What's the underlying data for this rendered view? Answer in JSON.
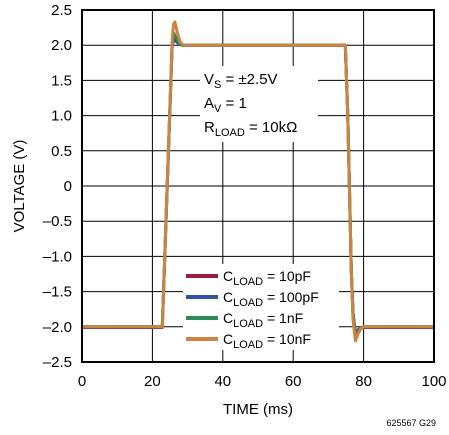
{
  "chart_data": {
    "type": "line",
    "xlabel": "TIME (ms)",
    "ylabel": "VOLTAGE (V)",
    "xlim": [
      0,
      100
    ],
    "ylim": [
      -2.5,
      2.5
    ],
    "x_ticks": [
      "0",
      "20",
      "40",
      "60",
      "80",
      "100"
    ],
    "y_ticks": [
      "2.5",
      "2.0",
      "1.5",
      "1.0",
      "0.5",
      "0",
      "–0.5",
      "–1.0",
      "–1.5",
      "–2.0",
      "–2.5"
    ],
    "grid": true,
    "legend_position": "bottom-center",
    "annotations": {
      "vs": {
        "main": "V",
        "sub": "S",
        "rest": " = ±2.5V"
      },
      "av": {
        "main": "A",
        "sub": "V",
        "rest": " = 1"
      },
      "rload": {
        "main": "R",
        "sub": "LOAD",
        "rest": " = 10kΩ"
      }
    },
    "figure_number": "625567 G29",
    "series": [
      {
        "label_main": "C",
        "label_sub": "LOAD",
        "label_rest": " = 10pF",
        "color": "#9b1b3c",
        "x": [
          0,
          22.8,
          25.6,
          26.0,
          26.6,
          27.5,
          28.5,
          30,
          40,
          50,
          60,
          70,
          74.8,
          75.5,
          76.5,
          77.0,
          77.6,
          78.2,
          79,
          80,
          90,
          100
        ],
        "y": [
          -2.01,
          -2.01,
          1.98,
          2.08,
          2.06,
          2.02,
          2.0,
          2.0,
          2.0,
          2.0,
          2.0,
          2.0,
          2.0,
          1.0,
          -1.2,
          -1.8,
          -2.08,
          -2.05,
          -2.02,
          -2.01,
          -2.01,
          -2.01
        ]
      },
      {
        "label_main": "C",
        "label_sub": "LOAD",
        "label_rest": " = 100pF",
        "color": "#2e53a6",
        "x": [
          0,
          22.8,
          25.6,
          26.0,
          26.6,
          27.5,
          28.5,
          30,
          40,
          50,
          60,
          70,
          74.8,
          75.5,
          76.5,
          77.0,
          77.6,
          78.2,
          79,
          80,
          90,
          100
        ],
        "y": [
          -2.0,
          -2.0,
          1.99,
          2.1,
          2.07,
          2.02,
          2.0,
          2.0,
          2.0,
          2.0,
          2.0,
          2.0,
          2.0,
          1.0,
          -1.2,
          -1.8,
          -2.1,
          -2.06,
          -2.02,
          -2.0,
          -2.0,
          -2.0
        ]
      },
      {
        "label_main": "C",
        "label_sub": "LOAD",
        "label_rest": " = 1nF",
        "color": "#2e8b57",
        "x": [
          0,
          22.8,
          25.6,
          26.0,
          26.6,
          27.5,
          28.5,
          30,
          40,
          50,
          60,
          70,
          74.8,
          75.5,
          76.5,
          77.0,
          77.6,
          78.2,
          79,
          80,
          90,
          100
        ],
        "y": [
          -2.0,
          -2.0,
          2.0,
          2.18,
          2.12,
          2.04,
          2.0,
          2.0,
          2.0,
          2.0,
          2.0,
          2.0,
          2.0,
          1.0,
          -1.2,
          -1.85,
          -2.15,
          -2.08,
          -2.02,
          -2.0,
          -2.0,
          -2.0
        ]
      },
      {
        "label_main": "C",
        "label_sub": "LOAD",
        "label_rest": " = 10nF",
        "color": "#cc8540",
        "x": [
          0,
          22.8,
          25.6,
          26.0,
          26.4,
          27.0,
          27.8,
          28.8,
          30,
          40,
          50,
          60,
          70,
          74.8,
          75.5,
          76.5,
          77.0,
          77.7,
          78.4,
          79.2,
          80,
          90,
          100
        ],
        "y": [
          -2.0,
          -2.0,
          2.05,
          2.3,
          2.33,
          2.2,
          2.05,
          2.0,
          2.0,
          2.0,
          2.0,
          2.0,
          2.0,
          2.0,
          1.0,
          -1.2,
          -1.9,
          -2.2,
          -2.1,
          -2.03,
          -2.0,
          -2.0,
          -2.0
        ]
      }
    ]
  }
}
